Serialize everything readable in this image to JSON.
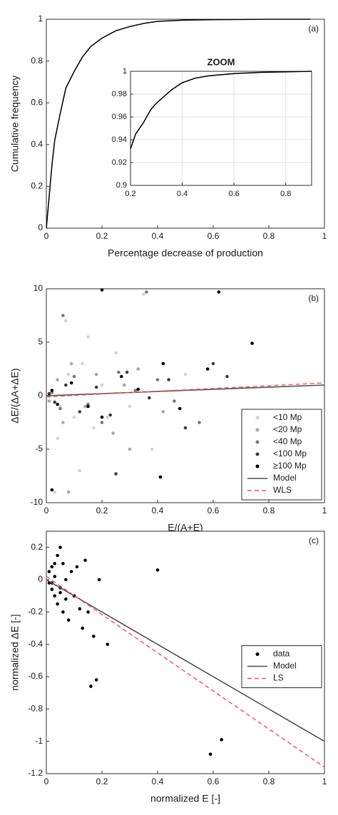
{
  "chart_data": [
    {
      "type": "line",
      "annotation": "(a)",
      "xlabel": "Percentage decrease of production",
      "ylabel": "Cumulative frequency",
      "xlim": [
        0,
        1
      ],
      "ylim": [
        0,
        1
      ],
      "xticks": [
        0,
        0.2,
        0.4,
        0.6,
        0.8,
        1
      ],
      "yticks": [
        0,
        0.2,
        0.4,
        0.6,
        0.8,
        1
      ],
      "grid": false,
      "series": [
        {
          "color": "#111111",
          "style": "solid",
          "x": [
            0,
            0.01,
            0.02,
            0.03,
            0.05,
            0.07,
            0.1,
            0.13,
            0.16,
            0.2,
            0.25,
            0.3,
            0.35,
            0.4,
            0.5,
            0.6,
            0.7,
            0.8,
            0.95
          ],
          "values": [
            0,
            0.15,
            0.3,
            0.42,
            0.55,
            0.67,
            0.75,
            0.82,
            0.87,
            0.91,
            0.945,
            0.965,
            0.98,
            0.99,
            0.996,
            0.998,
            0.999,
            1,
            1
          ]
        }
      ]
    },
    {
      "type": "line",
      "title": "ZOOM",
      "xlim": [
        0.2,
        0.9
      ],
      "ylim": [
        0.9,
        1
      ],
      "xticks": [
        0.2,
        0.4,
        0.6,
        0.8
      ],
      "yticks": [
        0.9,
        0.92,
        0.94,
        0.96,
        0.98,
        1
      ],
      "grid": true,
      "series": [
        {
          "color": "#111111",
          "style": "solid",
          "x": [
            0.2,
            0.22,
            0.25,
            0.28,
            0.3,
            0.33,
            0.36,
            0.4,
            0.45,
            0.5,
            0.6,
            0.7,
            0.9
          ],
          "values": [
            0.932,
            0.945,
            0.955,
            0.967,
            0.972,
            0.978,
            0.984,
            0.99,
            0.994,
            0.996,
            0.998,
            0.999,
            1
          ]
        }
      ]
    },
    {
      "type": "scatter",
      "annotation": "(b)",
      "xlabel": "E/(A+E)",
      "ylabel": "ΔE/(ΔA+ΔE)",
      "xlim": [
        0,
        1
      ],
      "ylim": [
        -10,
        10
      ],
      "xticks": [
        0,
        0.2,
        0.4,
        0.6,
        0.8,
        1
      ],
      "yticks": [
        -10,
        -5,
        0,
        5,
        10
      ],
      "grid": false,
      "legend": "lower right",
      "series": [
        {
          "name": "<10 Mp",
          "color": "#d3d3d3",
          "style": "markers",
          "x": [
            0.02,
            0.05,
            0.08,
            0.1,
            0.13,
            0.17,
            0.2,
            0.25,
            0.3,
            0.35,
            0.04,
            0.07,
            0.12,
            0.22,
            0.38,
            0.5,
            0.03,
            0.15
          ],
          "values": [
            0.5,
            -1,
            2,
            -2,
            3,
            -3,
            1,
            4,
            -1,
            9.5,
            -4,
            7,
            -7,
            -2,
            -5,
            2,
            -9,
            5.5
          ]
        },
        {
          "name": "<20 Mp",
          "color": "#a8a8a8",
          "style": "markers",
          "x": [
            0.01,
            0.04,
            0.06,
            0.09,
            0.14,
            0.18,
            0.24,
            0.28,
            0.33,
            0.42,
            0.08,
            0.3
          ],
          "values": [
            -0.5,
            1.5,
            -2.5,
            3,
            -1,
            2,
            -3.5,
            1,
            2.5,
            -1.5,
            -9,
            -5
          ]
        },
        {
          "name": "<40 Mp",
          "color": "#7a7a7a",
          "style": "markers",
          "x": [
            0.02,
            0.05,
            0.1,
            0.15,
            0.2,
            0.26,
            0.32,
            0.4,
            0.46,
            0.55,
            0.06,
            0.36
          ],
          "values": [
            0.3,
            -1.2,
            1.8,
            -0.8,
            -2.5,
            2.2,
            0.5,
            1.5,
            -0.5,
            -2.5,
            7.5,
            9.7
          ]
        },
        {
          "name": "<100 Mp",
          "color": "#404040",
          "style": "markers",
          "x": [
            0.01,
            0.03,
            0.07,
            0.12,
            0.18,
            0.23,
            0.29,
            0.37,
            0.44,
            0.5,
            0.6,
            0.65,
            0.25
          ],
          "values": [
            0.2,
            -0.6,
            1,
            -1.5,
            0.8,
            -1.8,
            2.2,
            -0.2,
            1.5,
            -3,
            3,
            1.8,
            -7.3
          ]
        },
        {
          "name": "≥100 Mp",
          "color": "#000000",
          "style": "markers",
          "x": [
            0.01,
            0.02,
            0.04,
            0.09,
            0.15,
            0.2,
            0.27,
            0.33,
            0.42,
            0.48,
            0.58,
            0.62,
            0.74,
            0.2,
            0.41,
            0.02
          ],
          "values": [
            0,
            0.5,
            -0.8,
            1.2,
            -1,
            -2,
            1.8,
            0.6,
            3,
            -1.2,
            2.5,
            9.7,
            4.9,
            9.9,
            -7.6,
            -8.8
          ]
        },
        {
          "name": "Model",
          "color": "#555555",
          "style": "solid",
          "x": [
            0,
            1
          ],
          "values": [
            0,
            1
          ]
        },
        {
          "name": "WLS",
          "color": "#ff5555",
          "style": "dashed",
          "x": [
            0,
            1
          ],
          "values": [
            -0.1,
            1.2
          ]
        }
      ]
    },
    {
      "type": "scatter",
      "annotation": "(c)",
      "xlabel": "normalized E [-]",
      "ylabel": "normalized ΔE [-]",
      "xlim": [
        0,
        1
      ],
      "ylim": [
        -1.2,
        0.3
      ],
      "xticks": [
        0,
        0.2,
        0.4,
        0.6,
        0.8,
        1
      ],
      "yticks": [
        -1.2,
        -1,
        -0.8,
        -0.6,
        -0.4,
        -0.2,
        0,
        0.2
      ],
      "grid": false,
      "legend": "right",
      "series": [
        {
          "name": "data",
          "color": "#000000",
          "style": "markers",
          "x": [
            0.01,
            0.01,
            0.02,
            0.02,
            0.03,
            0.03,
            0.04,
            0.04,
            0.05,
            0.05,
            0.06,
            0.06,
            0.07,
            0.08,
            0.09,
            0.1,
            0.11,
            0.12,
            0.13,
            0.14,
            0.15,
            0.17,
            0.18,
            0.22,
            0.4,
            0.59,
            0.63,
            0.19,
            0.16,
            0.02,
            0.03,
            0.05,
            0.07
          ],
          "values": [
            0.05,
            -0.02,
            0.08,
            -0.06,
            0.1,
            -0.1,
            0.15,
            -0.15,
            0.2,
            -0.05,
            -0.2,
            0.1,
            -0.12,
            -0.25,
            0.05,
            -0.1,
            0.08,
            -0.18,
            -0.3,
            0.12,
            -0.2,
            -0.35,
            -0.62,
            -0.4,
            0.06,
            -1.08,
            -0.99,
            0,
            -0.66,
            -0.02,
            0.02,
            -0.08,
            0
          ]
        },
        {
          "name": "Model",
          "color": "#555555",
          "style": "solid",
          "x": [
            0,
            1
          ],
          "values": [
            0,
            -1
          ]
        },
        {
          "name": "LS",
          "color": "#ff5555",
          "style": "dashed",
          "x": [
            0,
            1
          ],
          "values": [
            0.02,
            -1.16
          ]
        }
      ]
    }
  ]
}
